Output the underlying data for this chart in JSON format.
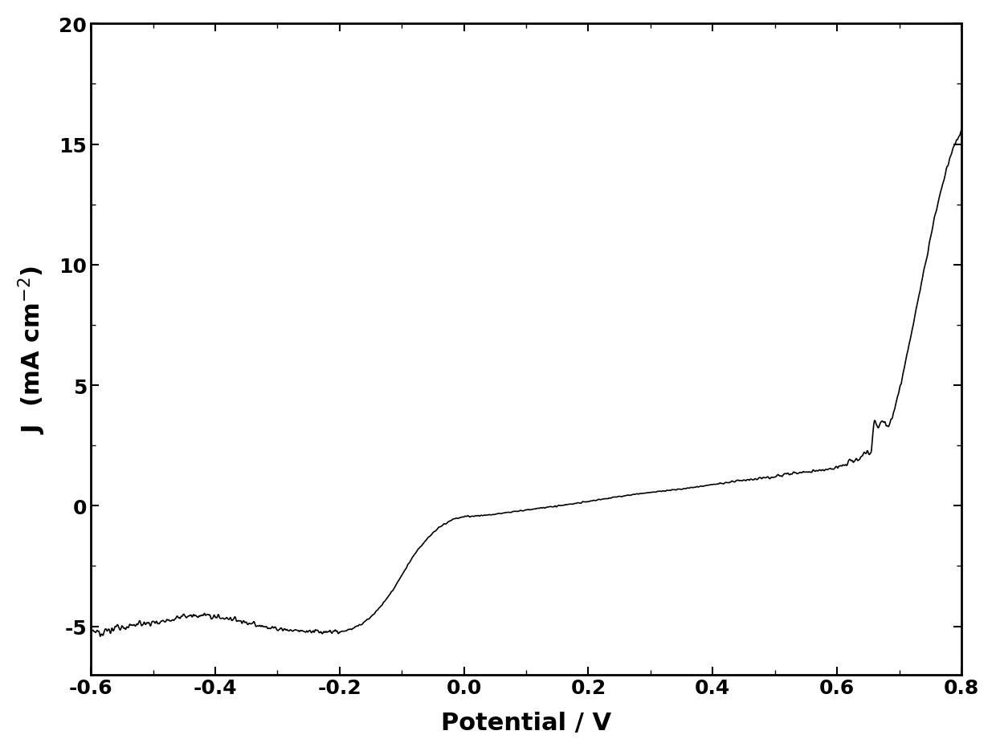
{
  "xlabel": "Potential / V",
  "ylabel": "J  (mA cm$^{-2}$)",
  "xlim": [
    -0.6,
    0.8
  ],
  "ylim": [
    -7,
    20
  ],
  "xticks": [
    -0.6,
    -0.4,
    -0.2,
    0.0,
    0.2,
    0.4,
    0.6,
    0.8
  ],
  "yticks": [
    -5,
    0,
    5,
    10,
    15,
    20
  ],
  "line_color": "#000000",
  "line_width": 1.5,
  "background_color": "#ffffff",
  "tick_fontsize": 18,
  "label_fontsize": 22,
  "figure_width": 12.4,
  "figure_height": 9.37,
  "dpi": 100
}
